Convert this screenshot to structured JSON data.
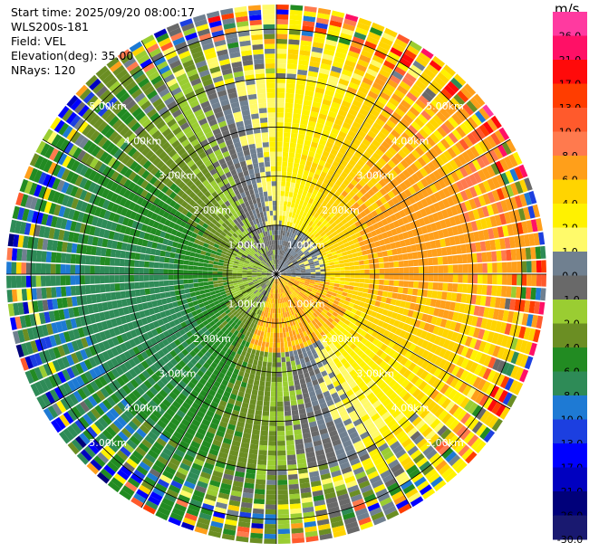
{
  "header": {
    "start_time": "Start time: 2025/09/20 08:00:17",
    "instrument": "WLS200s-181",
    "field": "Field: VEL",
    "elevation": "Elevation(deg): 35.00",
    "nrays": "NRays: 120"
  },
  "colorbar": {
    "title": "m/s",
    "levels": [
      {
        "label": "26.0",
        "color": "#ff3aa0"
      },
      {
        "label": "21.0",
        "color": "#ff1066"
      },
      {
        "label": "17.0",
        "color": "#ff0a0a"
      },
      {
        "label": "13.0",
        "color": "#ff3d00"
      },
      {
        "label": "10.0",
        "color": "#ff5a2c"
      },
      {
        "label": "8.0",
        "color": "#ff7a4e"
      },
      {
        "label": "6.0",
        "color": "#ff9f1a"
      },
      {
        "label": "4.0",
        "color": "#ffd400"
      },
      {
        "label": "2.0",
        "color": "#fff200"
      },
      {
        "label": "1.0",
        "color": "#fffa6a"
      },
      {
        "label": "0.0",
        "color": "#708090"
      },
      {
        "label": "-1.0",
        "color": "#696969"
      },
      {
        "label": "-2.0",
        "color": "#9acd32"
      },
      {
        "label": "-4.0",
        "color": "#6b8e23"
      },
      {
        "label": "-6.0",
        "color": "#228b22"
      },
      {
        "label": "-8.0",
        "color": "#2e8b57"
      },
      {
        "label": "-10.0",
        "color": "#1e7ad4"
      },
      {
        "label": "-13.0",
        "color": "#1c3fe0"
      },
      {
        "label": "-17.0",
        "color": "#0000ff"
      },
      {
        "label": "-21.0",
        "color": "#0000c0"
      },
      {
        "label": "-26.0",
        "color": "#00007a"
      },
      {
        "label": "-30.0",
        "color": "#191970"
      }
    ]
  },
  "chart_data": {
    "type": "heatmap",
    "subtype": "polar-ppi",
    "title": "WLS200s-181 VEL",
    "field": "VEL",
    "units": "m/s",
    "elevation_deg": 35.0,
    "nrays": 120,
    "max_range_km": 5.5,
    "range_rings_km": [
      1,
      2,
      3,
      4,
      5
    ],
    "ring_labels": [
      "1.00km",
      "2.00km",
      "3.00km",
      "4.00km",
      "5.00km"
    ],
    "spokes_deg": [
      0,
      30,
      60,
      90,
      120,
      150,
      180,
      210,
      240,
      270,
      300,
      330
    ],
    "vmin": -30.0,
    "vmax": 30.0,
    "pattern": "Velocities approx. +/-1 to 2 m/s within 1 km, mostly negative (-2 to -6 m/s) toward the west and north-west, positive (+2 to +10 m/s) toward the east and north-east, with noisy high-magnitude values beyond about 4.5 km"
  }
}
